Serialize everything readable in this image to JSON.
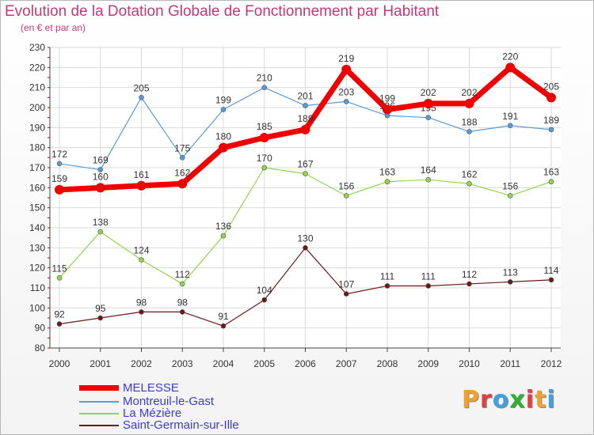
{
  "title": "Evolution de la Dotation Globale de Fonctionnement par Habitant",
  "subtitle": "(en € et par an)",
  "brand": {
    "text": "Proxiti",
    "colors": [
      "#f0a030",
      "#e04040",
      "#40a0e0",
      "#30b030",
      "#e04040",
      "#f0a030",
      "#40a0e0"
    ]
  },
  "chart_data": {
    "type": "line",
    "x": [
      "2000",
      "2001",
      "2002",
      "2003",
      "2004",
      "2005",
      "2006",
      "2007",
      "2008",
      "2009",
      "2010",
      "2011",
      "2012"
    ],
    "ylim": [
      80,
      230
    ],
    "yticks": [
      80,
      90,
      100,
      110,
      120,
      130,
      140,
      150,
      160,
      170,
      180,
      190,
      200,
      210,
      220,
      230
    ],
    "grid": true,
    "legend_position": "bottom-left",
    "series": [
      {
        "name": "Saint-Germain-sur-Ille",
        "color": "#6b1818",
        "width": 1.2,
        "marker": 3,
        "values": [
          92,
          95,
          98,
          98,
          91,
          104,
          130,
          107,
          111,
          111,
          112,
          113,
          114
        ]
      },
      {
        "name": "La Mézière",
        "color": "#93d44f",
        "width": 1.2,
        "marker": 3,
        "values": [
          115,
          138,
          124,
          112,
          136,
          170,
          167,
          156,
          163,
          164,
          162,
          156,
          163
        ]
      },
      {
        "name": "Montreuil-le-Gast",
        "color": "#5b9bd5",
        "width": 1.2,
        "marker": 3,
        "values": [
          172,
          169,
          205,
          175,
          199,
          210,
          201,
          203,
          196,
          195,
          188,
          191,
          189
        ]
      },
      {
        "name": "MELESSE",
        "color": "#ee0000",
        "width": 7,
        "marker": 6,
        "values": [
          159,
          160,
          161,
          162,
          180,
          185,
          189,
          219,
          199,
          202,
          202,
          220,
          205
        ]
      }
    ]
  },
  "legend": [
    {
      "name": "MELESSE",
      "color": "#ee0000",
      "height": 7
    },
    {
      "name": "Montreuil-le-Gast",
      "color": "#5b9bd5",
      "height": 2
    },
    {
      "name": "La Mézière",
      "color": "#93d44f",
      "height": 2
    },
    {
      "name": "Saint-Germain-sur-Ille",
      "color": "#6b1818",
      "height": 2
    }
  ]
}
